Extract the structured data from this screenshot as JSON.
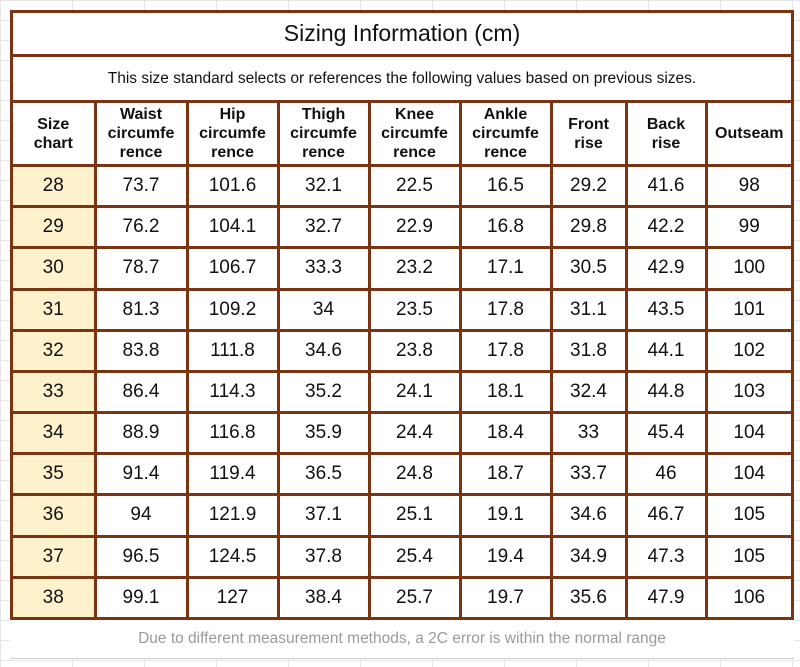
{
  "title": "Sizing Information  (cm)",
  "subtitle": "This size standard selects or references the following values based on previous sizes.",
  "colors": {
    "border": "#7a3412",
    "size_column_bg": "#fdf2cc",
    "footer_text": "#9a9a9a"
  },
  "table": {
    "headers": [
      [
        "Size",
        "chart"
      ],
      [
        "Waist",
        "circumfe",
        "rence"
      ],
      [
        "Hip",
        "circumfe",
        "rence"
      ],
      [
        "Thigh",
        "circumfe",
        "rence"
      ],
      [
        "Knee",
        "circumfe",
        "rence"
      ],
      [
        "Ankle",
        "circumfe",
        "rence"
      ],
      [
        "Front",
        "rise"
      ],
      [
        "Back",
        "rise"
      ],
      [
        "Outseam"
      ]
    ],
    "rows": [
      [
        "28",
        "73.7",
        "101.6",
        "32.1",
        "22.5",
        "16.5",
        "29.2",
        "41.6",
        "98"
      ],
      [
        "29",
        "76.2",
        "104.1",
        "32.7",
        "22.9",
        "16.8",
        "29.8",
        "42.2",
        "99"
      ],
      [
        "30",
        "78.7",
        "106.7",
        "33.3",
        "23.2",
        "17.1",
        "30.5",
        "42.9",
        "100"
      ],
      [
        "31",
        "81.3",
        "109.2",
        "34",
        "23.5",
        "17.8",
        "31.1",
        "43.5",
        "101"
      ],
      [
        "32",
        "83.8",
        "111.8",
        "34.6",
        "23.8",
        "17.8",
        "31.8",
        "44.1",
        "102"
      ],
      [
        "33",
        "86.4",
        "114.3",
        "35.2",
        "24.1",
        "18.1",
        "32.4",
        "44.8",
        "103"
      ],
      [
        "34",
        "88.9",
        "116.8",
        "35.9",
        "24.4",
        "18.4",
        "33",
        "45.4",
        "104"
      ],
      [
        "35",
        "91.4",
        "119.4",
        "36.5",
        "24.8",
        "18.7",
        "33.7",
        "46",
        "104"
      ],
      [
        "36",
        "94",
        "121.9",
        "37.1",
        "25.1",
        "19.1",
        "34.6",
        "46.7",
        "105"
      ],
      [
        "37",
        "96.5",
        "124.5",
        "37.8",
        "25.4",
        "19.4",
        "34.9",
        "47.3",
        "105"
      ],
      [
        "38",
        "99.1",
        "127",
        "38.4",
        "25.7",
        "19.7",
        "35.6",
        "47.9",
        "106"
      ]
    ]
  },
  "footer": "Due to different measurement methods, a 2C error is within the normal range"
}
